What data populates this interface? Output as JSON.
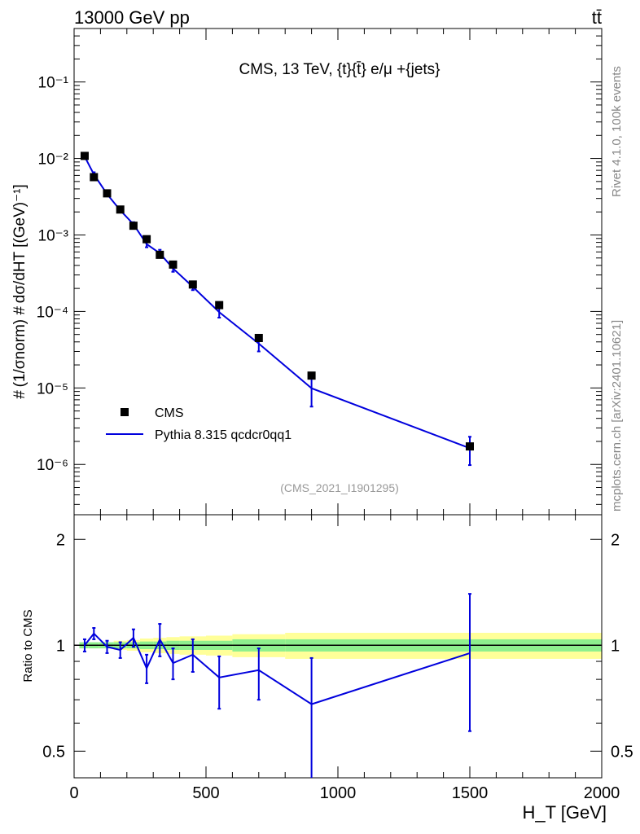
{
  "header": {
    "left_label": "13000 GeV pp",
    "right_label": "tt̄"
  },
  "side_labels": {
    "rivet": "Rivet 4.1.0,  100k events",
    "mcplots": "mcplots.cern.ch [arXiv:2401.10621]"
  },
  "chart_data": [
    {
      "type": "scatter",
      "panel": "main",
      "title": "CMS, 13 TeV, {t}{t̄} e/μ +{jets}",
      "ylabel": "# (1/σnorm) # dσ/dHT [(GeV)⁻¹]",
      "yscale": "log",
      "xlim": [
        0,
        2000
      ],
      "ylim": [
        2.2e-07,
        0.5
      ],
      "yticks": [
        1e-06,
        1e-05,
        0.0001,
        0.001,
        0.01,
        0.1
      ],
      "ytick_labels": [
        "10⁻⁶",
        "10⁻⁵",
        "10⁻⁴",
        "10⁻³",
        "10⁻²",
        "10⁻¹"
      ],
      "analysis_label": "(CMS_2021_I1901295)",
      "legend_position": "lower-left",
      "series": [
        {
          "name": "CMS",
          "kind": "markers",
          "color": "#000000",
          "x": [
            40,
            75,
            125,
            175,
            225,
            275,
            325,
            375,
            450,
            550,
            700,
            900,
            1500
          ],
          "y": [
            0.0108,
            0.0057,
            0.0035,
            0.00215,
            0.00132,
            0.00088,
            0.00055,
            0.00041,
            0.000225,
            0.000121,
            4.5e-05,
            1.45e-05,
            1.72e-06
          ]
        },
        {
          "name": "Pythia 8.315 qcdcr0qq1",
          "kind": "line",
          "color": "#0000dd",
          "x": [
            40,
            75,
            125,
            175,
            225,
            275,
            325,
            375,
            450,
            550,
            700,
            900,
            1500
          ],
          "y": [
            0.0106,
            0.0062,
            0.00342,
            0.0021,
            0.00138,
            0.00076,
            0.000575,
            0.000365,
            0.00021,
            9.8e-05,
            3.8e-05,
            9.9e-06,
            1.63e-06
          ],
          "err_low": [
            0.0102,
            0.0058,
            0.0033,
            0.00202,
            0.00129,
            0.00069,
            0.00051,
            0.00033,
            0.00019,
            8.3e-05,
            3e-05,
            5.7e-06,
            9.8e-07
          ],
          "err_high": [
            0.011,
            0.0066,
            0.00354,
            0.00218,
            0.00147,
            0.00083,
            0.00064,
            0.0004,
            0.00023,
            0.000113,
            4.6e-05,
            1.4e-05,
            2.3e-06
          ]
        }
      ]
    },
    {
      "type": "line",
      "panel": "ratio",
      "ylabel": "Ratio to CMS",
      "xlabel": "H_T [GeV]",
      "xlim": [
        0,
        2000
      ],
      "ylim": [
        0.42,
        2.35
      ],
      "xticks": [
        0,
        500,
        1000,
        1500,
        2000
      ],
      "xtick_labels": [
        "0",
        "500",
        "1000",
        "1500",
        "2000"
      ],
      "yticks": [
        0.5,
        1,
        2
      ],
      "ytick_labels": [
        "0.5",
        "1",
        "2"
      ],
      "reference_line": 1,
      "bands": {
        "edges": [
          20,
          55,
          95,
          150,
          200,
          250,
          300,
          350,
          400,
          500,
          600,
          800,
          1000,
          2000
        ],
        "inner_half_width": [
          0.02,
          0.02,
          0.02,
          0.02,
          0.02,
          0.025,
          0.025,
          0.03,
          0.03,
          0.03,
          0.04,
          0.04,
          0.04
        ],
        "outer_half_width": [
          0.02,
          0.02,
          0.02,
          0.03,
          0.035,
          0.045,
          0.05,
          0.055,
          0.06,
          0.065,
          0.075,
          0.085,
          0.085
        ],
        "inner_color": "#8ef08e",
        "outer_color": "#ffff99"
      },
      "series": [
        {
          "name": "Pythia 8.315 qcdcr0qq1 / CMS",
          "color": "#0000dd",
          "x": [
            40,
            75,
            125,
            175,
            225,
            275,
            325,
            375,
            450,
            550,
            700,
            900,
            1500
          ],
          "y": [
            1.0,
            1.08,
            0.99,
            0.97,
            1.05,
            0.86,
            1.04,
            0.89,
            0.94,
            0.81,
            0.85,
            0.68,
            0.95
          ],
          "err_low": [
            0.96,
            1.04,
            0.95,
            0.92,
            0.99,
            0.78,
            0.93,
            0.8,
            0.84,
            0.66,
            0.7,
            0.4,
            0.57
          ],
          "err_high": [
            1.04,
            1.12,
            1.03,
            1.02,
            1.11,
            0.94,
            1.15,
            0.98,
            1.04,
            0.93,
            0.98,
            0.92,
            1.4
          ]
        }
      ]
    }
  ]
}
